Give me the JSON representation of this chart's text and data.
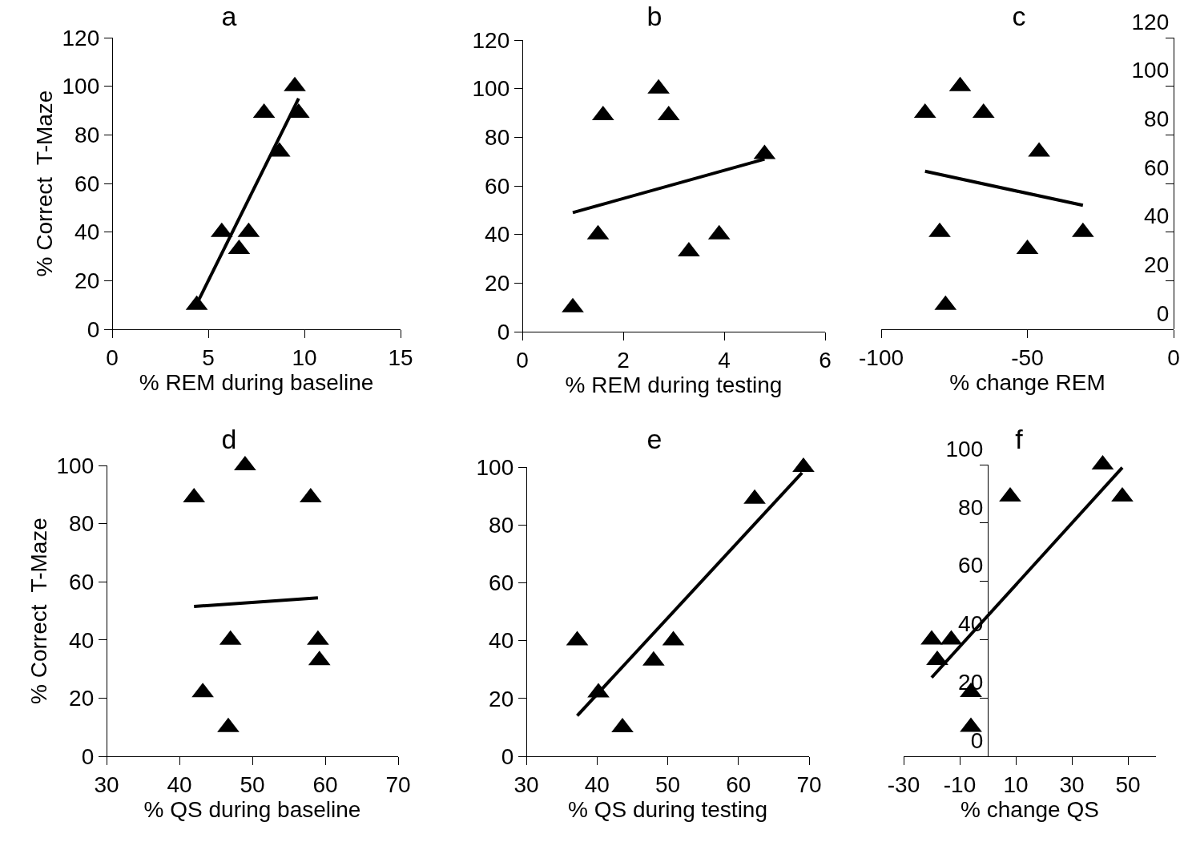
{
  "chart_data": [
    {
      "type": "scatter",
      "title": "a",
      "xlabel": "% REM during baseline",
      "ylabel": "% Correct  T-Maze",
      "xlim": [
        0,
        15
      ],
      "xticks": [
        0,
        5,
        10,
        15
      ],
      "ylim": [
        0,
        120
      ],
      "yticks": [
        0,
        20,
        40,
        60,
        80,
        100,
        120
      ],
      "series": [
        {
          "marker": "triangle",
          "color": "#000000",
          "x": [
            9.5,
            9.7,
            7.9,
            8.7,
            5.7,
            7.1,
            6.6,
            4.4
          ],
          "values": [
            100,
            89,
            89,
            73,
            40,
            40,
            33,
            10
          ]
        },
        {
          "type": "line",
          "color": "#000000",
          "x": [
            4.5,
            9.7
          ],
          "values": [
            12,
            95
          ]
        }
      ]
    },
    {
      "type": "scatter",
      "title": "b",
      "xlabel": "% REM during testing",
      "xlim": [
        0,
        6
      ],
      "xticks": [
        0,
        2,
        4,
        6
      ],
      "ylim": [
        0,
        120
      ],
      "yticks": [
        0,
        20,
        40,
        60,
        80,
        100,
        120
      ],
      "series": [
        {
          "marker": "triangle",
          "color": "#000000",
          "x": [
            2.7,
            1.6,
            2.9,
            4.8,
            1.5,
            3.9,
            3.3,
            1.0
          ],
          "values": [
            100,
            89,
            89,
            73,
            40,
            40,
            33,
            10
          ]
        },
        {
          "type": "line",
          "color": "#000000",
          "x": [
            1.0,
            4.8
          ],
          "values": [
            49,
            71
          ]
        }
      ]
    },
    {
      "type": "scatter",
      "title": "c",
      "xlabel": "% change REM",
      "xlim": [
        -100,
        0
      ],
      "xticks": [
        -100,
        -50,
        0
      ],
      "ylim": [
        0,
        120
      ],
      "yticks": [
        0,
        20,
        40,
        60,
        80,
        100,
        120
      ],
      "series": [
        {
          "marker": "triangle",
          "color": "#000000",
          "x": [
            -73,
            -85,
            -65,
            -46,
            -80,
            -50,
            -31,
            -78
          ],
          "values": [
            100,
            89,
            89,
            73,
            40,
            33,
            40,
            10
          ]
        },
        {
          "type": "line",
          "color": "#000000",
          "x": [
            -85,
            -31
          ],
          "values": [
            65,
            51
          ]
        }
      ]
    },
    {
      "type": "scatter",
      "title": "d",
      "xlabel": "% QS during baseline",
      "ylabel": "% Correct  T-Maze",
      "xlim": [
        30,
        70
      ],
      "xticks": [
        30,
        40,
        50,
        60,
        70
      ],
      "ylim": [
        0,
        100
      ],
      "yticks": [
        0,
        20,
        40,
        60,
        80,
        100
      ],
      "series": [
        {
          "marker": "triangle",
          "color": "#000000",
          "x": [
            49,
            42,
            58,
            47,
            59,
            59.2,
            43.2,
            46.7
          ],
          "values": [
            100,
            89,
            89,
            40,
            40,
            33,
            22,
            10
          ]
        },
        {
          "type": "line",
          "color": "#000000",
          "x": [
            42,
            59
          ],
          "values": [
            51.5,
            54.5
          ]
        }
      ]
    },
    {
      "type": "scatter",
      "title": "e",
      "xlabel": "% QS during testing",
      "xlim": [
        30,
        70
      ],
      "xticks": [
        30,
        40,
        50,
        60,
        70
      ],
      "ylim": [
        0,
        100
      ],
      "yticks": [
        0,
        20,
        40,
        60,
        80,
        100
      ],
      "series": [
        {
          "marker": "triangle",
          "color": "#000000",
          "x": [
            69.2,
            62.3,
            37.2,
            50.8,
            48,
            40.2,
            43.6
          ],
          "values": [
            100,
            89,
            40,
            40,
            33,
            22,
            10
          ]
        },
        {
          "type": "line",
          "color": "#000000",
          "x": [
            37.2,
            69
          ],
          "values": [
            14,
            98
          ]
        }
      ]
    },
    {
      "type": "scatter",
      "title": "f",
      "xlabel": "% change QS",
      "xlim": [
        -30,
        60
      ],
      "xticks": [
        -30,
        -10,
        10,
        30,
        50
      ],
      "ylim": [
        0,
        100
      ],
      "yticks": [
        0,
        20,
        40,
        60,
        80,
        100
      ],
      "series": [
        {
          "marker": "triangle",
          "color": "#000000",
          "x": [
            41,
            8,
            48,
            -20,
            -13,
            -18,
            -6,
            -6
          ],
          "values": [
            100,
            89,
            89,
            40,
            40,
            33,
            22,
            10
          ]
        },
        {
          "type": "line",
          "color": "#000000",
          "x": [
            -20,
            48
          ],
          "values": [
            27,
            99
          ]
        }
      ]
    }
  ]
}
